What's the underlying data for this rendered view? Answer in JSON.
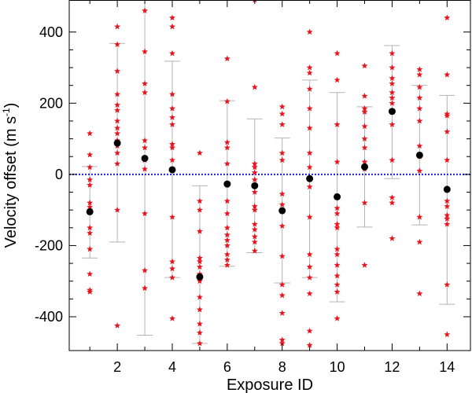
{
  "chart_data": {
    "type": "scatter",
    "xlabel": "Exposure ID",
    "ylabel_main": "Velocity offset (m s",
    "ylabel_sup": "-1",
    "ylabel_end": ")",
    "xlim": [
      0.25,
      14.85
    ],
    "ylim": [
      -495,
      490
    ],
    "xticks": [
      2,
      4,
      6,
      8,
      10,
      12,
      14
    ],
    "yticks": [
      -400,
      -200,
      0,
      200,
      400
    ],
    "reference_line": {
      "y": 0,
      "color": "#1f1fd0",
      "style": "dotted"
    },
    "colors": {
      "star": "#e8141e",
      "mean": "#000000",
      "errorbar": "#b4b4b4",
      "axes": "#000000"
    },
    "series": [
      {
        "name": "",
        "marker": "star",
        "points": [
          [
            1,
            115
          ],
          [
            1,
            55
          ],
          [
            1,
            20
          ],
          [
            1,
            -15
          ],
          [
            1,
            -30
          ],
          [
            1,
            -80
          ],
          [
            1,
            -92
          ],
          [
            1,
            -100
          ],
          [
            1,
            -150
          ],
          [
            1,
            -165
          ],
          [
            1,
            -210
          ],
          [
            1,
            -280
          ],
          [
            1,
            -325
          ],
          [
            1,
            -330
          ],
          [
            2,
            415
          ],
          [
            2,
            365
          ],
          [
            2,
            290
          ],
          [
            2,
            225
          ],
          [
            2,
            195
          ],
          [
            2,
            180
          ],
          [
            2,
            150
          ],
          [
            2,
            130
          ],
          [
            2,
            115
          ],
          [
            2,
            95
          ],
          [
            2,
            80
          ],
          [
            2,
            60
          ],
          [
            2,
            30
          ],
          [
            2,
            -100
          ],
          [
            2,
            -425
          ],
          [
            3,
            460
          ],
          [
            3,
            345
          ],
          [
            3,
            255
          ],
          [
            3,
            230
          ],
          [
            3,
            95
          ],
          [
            3,
            75
          ],
          [
            3,
            40
          ],
          [
            3,
            15
          ],
          [
            3,
            -110
          ],
          [
            3,
            -270
          ],
          [
            3,
            -320
          ],
          [
            4,
            440
          ],
          [
            4,
            415
          ],
          [
            4,
            340
          ],
          [
            4,
            225
          ],
          [
            4,
            185
          ],
          [
            4,
            160
          ],
          [
            4,
            140
          ],
          [
            4,
            85
          ],
          [
            4,
            75
          ],
          [
            4,
            40
          ],
          [
            4,
            -120
          ],
          [
            4,
            -245
          ],
          [
            4,
            -265
          ],
          [
            4,
            -290
          ],
          [
            4,
            -405
          ],
          [
            5,
            60
          ],
          [
            5,
            -75
          ],
          [
            5,
            -100
          ],
          [
            5,
            -160
          ],
          [
            5,
            -235
          ],
          [
            5,
            -245
          ],
          [
            5,
            -260
          ],
          [
            5,
            -280
          ],
          [
            5,
            -300
          ],
          [
            5,
            -345
          ],
          [
            5,
            -380
          ],
          [
            5,
            -420
          ],
          [
            5,
            -445
          ],
          [
            5,
            -475
          ],
          [
            6,
            325
          ],
          [
            6,
            205
          ],
          [
            6,
            90
          ],
          [
            6,
            75
          ],
          [
            6,
            30
          ],
          [
            6,
            -30
          ],
          [
            6,
            -75
          ],
          [
            6,
            -110
          ],
          [
            6,
            -150
          ],
          [
            6,
            -170
          ],
          [
            6,
            -185
          ],
          [
            6,
            -200
          ],
          [
            6,
            -225
          ],
          [
            6,
            -240
          ],
          [
            6,
            -255
          ],
          [
            7,
            490
          ],
          [
            7,
            245
          ],
          [
            7,
            30
          ],
          [
            7,
            20
          ],
          [
            7,
            5
          ],
          [
            7,
            -15
          ],
          [
            7,
            -50
          ],
          [
            7,
            -90
          ],
          [
            7,
            -100
          ],
          [
            7,
            -140
          ],
          [
            7,
            -155
          ],
          [
            7,
            -175
          ],
          [
            7,
            -190
          ],
          [
            7,
            -215
          ],
          [
            8,
            190
          ],
          [
            8,
            170
          ],
          [
            8,
            140
          ],
          [
            8,
            60
          ],
          [
            8,
            40
          ],
          [
            8,
            -55
          ],
          [
            8,
            -85
          ],
          [
            8,
            -145
          ],
          [
            8,
            -230
          ],
          [
            8,
            -310
          ],
          [
            8,
            -340
          ],
          [
            8,
            -390
          ],
          [
            8,
            -465
          ],
          [
            8,
            -475
          ],
          [
            9,
            400
          ],
          [
            9,
            300
          ],
          [
            9,
            285
          ],
          [
            9,
            240
          ],
          [
            9,
            185
          ],
          [
            9,
            130
          ],
          [
            9,
            60
          ],
          [
            9,
            20
          ],
          [
            9,
            -35
          ],
          [
            9,
            -120
          ],
          [
            9,
            -225
          ],
          [
            9,
            -260
          ],
          [
            9,
            -290
          ],
          [
            9,
            -335
          ],
          [
            9,
            -440
          ],
          [
            9,
            -480
          ],
          [
            10,
            340
          ],
          [
            10,
            265
          ],
          [
            10,
            140
          ],
          [
            10,
            35
          ],
          [
            10,
            -95
          ],
          [
            10,
            -110
          ],
          [
            10,
            -140
          ],
          [
            10,
            -150
          ],
          [
            10,
            -210
          ],
          [
            10,
            -225
          ],
          [
            10,
            -255
          ],
          [
            10,
            -285
          ],
          [
            10,
            -310
          ],
          [
            10,
            -330
          ],
          [
            10,
            -405
          ],
          [
            11,
            305
          ],
          [
            11,
            220
          ],
          [
            11,
            185
          ],
          [
            11,
            175
          ],
          [
            11,
            135
          ],
          [
            11,
            100
          ],
          [
            11,
            75
          ],
          [
            11,
            35
          ],
          [
            11,
            25
          ],
          [
            11,
            15
          ],
          [
            11,
            -80
          ],
          [
            11,
            -255
          ],
          [
            12,
            340
          ],
          [
            12,
            300
          ],
          [
            12,
            270
          ],
          [
            12,
            255
          ],
          [
            12,
            230
          ],
          [
            12,
            215
          ],
          [
            12,
            200
          ],
          [
            12,
            140
          ],
          [
            12,
            40
          ],
          [
            12,
            -65
          ],
          [
            12,
            -80
          ],
          [
            12,
            -180
          ],
          [
            13,
            295
          ],
          [
            13,
            280
          ],
          [
            13,
            245
          ],
          [
            13,
            215
          ],
          [
            13,
            185
          ],
          [
            13,
            150
          ],
          [
            13,
            80
          ],
          [
            13,
            50
          ],
          [
            13,
            10
          ],
          [
            13,
            -120
          ],
          [
            13,
            -190
          ],
          [
            13,
            -335
          ],
          [
            14,
            440
          ],
          [
            14,
            280
          ],
          [
            14,
            170
          ],
          [
            14,
            165
          ],
          [
            14,
            120
          ],
          [
            14,
            40
          ],
          [
            14,
            -75
          ],
          [
            14,
            -90
          ],
          [
            14,
            -115
          ],
          [
            14,
            -125
          ],
          [
            14,
            -140
          ],
          [
            14,
            -310
          ],
          [
            14,
            -450
          ]
        ]
      },
      {
        "name": "",
        "marker": "circle",
        "points": [
          [
            1,
            -105
          ],
          [
            2,
            88
          ],
          [
            3,
            45
          ],
          [
            4,
            13
          ],
          [
            5,
            -288
          ],
          [
            6,
            -27
          ],
          [
            7,
            -32
          ],
          [
            8,
            -102
          ],
          [
            9,
            -12
          ],
          [
            10,
            -63
          ],
          [
            11,
            21
          ],
          [
            12,
            177
          ],
          [
            13,
            54
          ],
          [
            14,
            -42
          ]
        ],
        "error": [
          [
            -235,
            22
          ],
          [
            -190,
            368
          ],
          [
            -452,
            540
          ],
          [
            -290,
            318
          ],
          [
            -475,
            -32
          ],
          [
            -258,
            207
          ],
          [
            -220,
            156
          ],
          [
            -305,
            102
          ],
          [
            -290,
            265
          ],
          [
            -358,
            230
          ],
          [
            -148,
            190
          ],
          [
            -12,
            362
          ],
          [
            -142,
            250
          ],
          [
            -365,
            222
          ]
        ]
      }
    ],
    "grid": false
  }
}
